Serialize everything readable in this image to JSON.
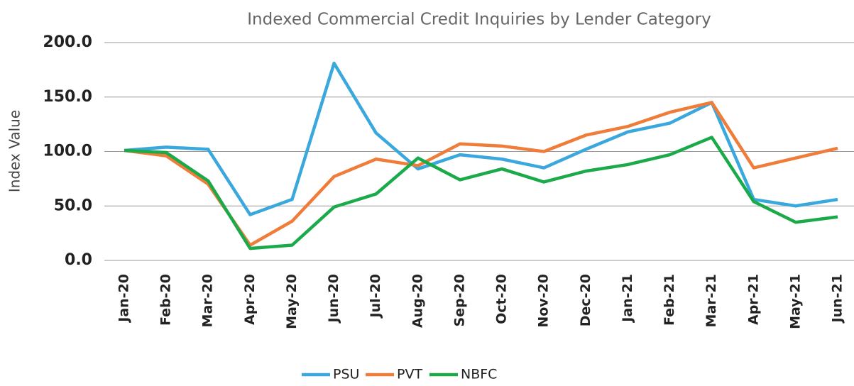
{
  "chart_data": {
    "type": "line",
    "title": "Indexed Commercial Credit Inquiries by Lender Category",
    "y_label": "Index Value",
    "categories": [
      "Jan-20",
      "Feb-20",
      "Mar-20",
      "Apr-20",
      "May-20",
      "Jun-20",
      "Jul-20",
      "Aug-20",
      "Sep-20",
      "Oct-20",
      "Nov-20",
      "Dec-20",
      "Jan-21",
      "Feb-21",
      "Mar-21",
      "Apr-21",
      "May-21",
      "Jun-21"
    ],
    "series": [
      {
        "name": "PSU",
        "color": "#3aa8dc",
        "values": [
          101,
          104,
          102,
          42,
          56,
          181,
          117,
          84,
          97,
          93,
          85,
          102,
          118,
          126,
          145,
          56,
          50,
          56
        ]
      },
      {
        "name": "PVT",
        "color": "#f07c3a",
        "values": [
          101,
          96,
          70,
          14,
          36,
          77,
          93,
          87,
          107,
          105,
          100,
          115,
          123,
          136,
          145,
          85,
          94,
          103
        ]
      },
      {
        "name": "NBFC",
        "color": "#1aaa4a",
        "values": [
          101,
          99,
          73,
          11,
          14,
          49,
          61,
          94,
          74,
          84,
          72,
          82,
          88,
          97,
          113,
          54,
          35,
          40
        ]
      }
    ],
    "ylim": [
      0,
      200
    ],
    "yticks": [
      {
        "value": 0,
        "label": "0.0"
      },
      {
        "value": 50,
        "label": "50.0"
      },
      {
        "value": 100,
        "label": "100.0"
      },
      {
        "value": 150,
        "label": "150.0"
      },
      {
        "value": 200,
        "label": "200.0"
      }
    ],
    "grid": true,
    "legend": "bottom"
  }
}
